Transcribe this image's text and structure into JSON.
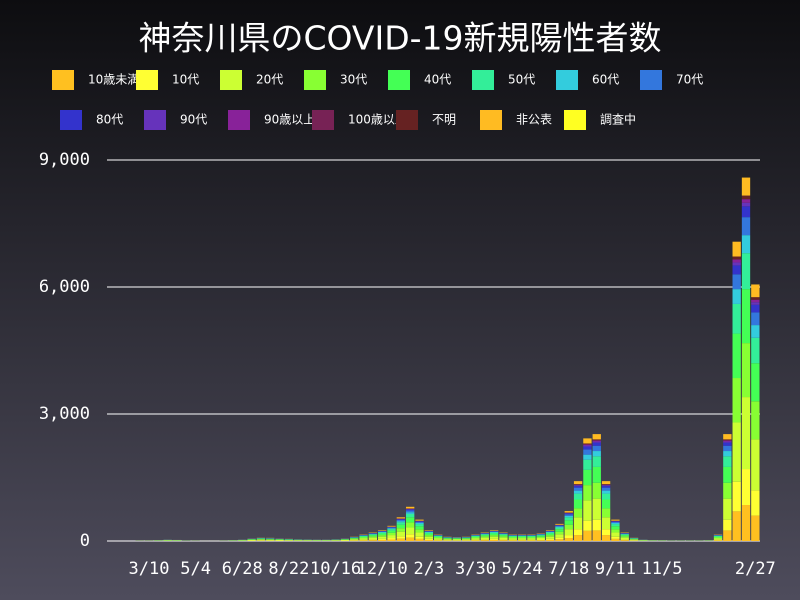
{
  "chart_data": {
    "type": "stacked_bar",
    "title": "神奈川県のCOVID-19新規陽性者数",
    "categories": [
      null,
      null,
      null,
      null,
      "3/10",
      null,
      null,
      null,
      null,
      "5/4",
      null,
      null,
      null,
      null,
      "6/28",
      null,
      null,
      null,
      null,
      "8/22",
      null,
      null,
      null,
      null,
      "10/16",
      null,
      null,
      null,
      null,
      "12/10",
      null,
      null,
      null,
      null,
      "2/3",
      null,
      null,
      null,
      null,
      "3/30",
      null,
      null,
      null,
      null,
      "5/24",
      null,
      null,
      null,
      null,
      "7/18",
      null,
      null,
      null,
      null,
      "9/11",
      null,
      null,
      null,
      null,
      "11/5",
      null,
      null,
      null,
      null,
      null,
      null,
      null,
      null,
      null,
      "2/27"
    ],
    "ylim": [
      0,
      9000
    ],
    "yticks": [
      {
        "value": 0,
        "label": "0"
      },
      {
        "value": 3000,
        "label": "3,000"
      },
      {
        "value": 6000,
        "label": "6,000"
      },
      {
        "value": 9000,
        "label": "9,000"
      }
    ],
    "grid": true,
    "series": [
      {
        "name": "10歳未満",
        "color": "#ffc020",
        "values": [
          0,
          0,
          0,
          1,
          1,
          2,
          3,
          3,
          1,
          1,
          0,
          0,
          1,
          2,
          3,
          6,
          8,
          7,
          6,
          5,
          4,
          4,
          3,
          3,
          4,
          6,
          10,
          15,
          20,
          25,
          35,
          55,
          80,
          50,
          25,
          15,
          10,
          9,
          10,
          15,
          20,
          25,
          20,
          15,
          15,
          15,
          18,
          25,
          40,
          70,
          140,
          240,
          250,
          140,
          50,
          20,
          8,
          3,
          2,
          2,
          1,
          1,
          1,
          1,
          2,
          15,
          250,
          700,
          850,
          600
        ]
      },
      {
        "name": "10代",
        "color": "#ffff33",
        "values": [
          0,
          0,
          0,
          1,
          1,
          2,
          3,
          3,
          1,
          1,
          0,
          0,
          1,
          2,
          3,
          6,
          8,
          7,
          6,
          5,
          4,
          4,
          3,
          3,
          4,
          6,
          10,
          15,
          20,
          25,
          35,
          55,
          80,
          50,
          25,
          15,
          10,
          9,
          10,
          15,
          20,
          25,
          20,
          15,
          15,
          15,
          18,
          25,
          40,
          70,
          140,
          240,
          250,
          140,
          50,
          20,
          8,
          3,
          2,
          2,
          1,
          1,
          1,
          1,
          2,
          15,
          250,
          700,
          850,
          600
        ]
      },
      {
        "name": "20代",
        "color": "#ccff33",
        "values": [
          0,
          0,
          0,
          1,
          2,
          4,
          6,
          5,
          2,
          1,
          1,
          1,
          1,
          4,
          6,
          12,
          16,
          14,
          12,
          10,
          8,
          7,
          6,
          6,
          8,
          12,
          20,
          30,
          40,
          50,
          70,
          110,
          160,
          100,
          50,
          30,
          20,
          18,
          20,
          30,
          40,
          50,
          40,
          30,
          30,
          30,
          36,
          50,
          80,
          140,
          280,
          480,
          500,
          280,
          100,
          40,
          16,
          6,
          4,
          3,
          2,
          2,
          2,
          2,
          3,
          30,
          500,
          1400,
          1700,
          1200
        ]
      },
      {
        "name": "30代",
        "color": "#88ff33",
        "values": [
          0,
          0,
          0,
          1,
          1,
          3,
          5,
          4,
          2,
          1,
          0,
          0,
          1,
          3,
          5,
          9,
          12,
          11,
          9,
          8,
          6,
          5,
          5,
          5,
          6,
          9,
          15,
          23,
          30,
          38,
          53,
          83,
          120,
          75,
          38,
          23,
          15,
          14,
          15,
          23,
          30,
          38,
          30,
          23,
          23,
          23,
          27,
          38,
          60,
          105,
          210,
          360,
          375,
          210,
          75,
          30,
          12,
          5,
          3,
          2,
          2,
          2,
          2,
          2,
          2,
          23,
          375,
          1050,
          1275,
          900
        ]
      },
      {
        "name": "40代",
        "color": "#44ff55",
        "values": [
          0,
          0,
          0,
          1,
          1,
          3,
          5,
          4,
          2,
          1,
          0,
          0,
          1,
          3,
          5,
          9,
          12,
          11,
          9,
          8,
          6,
          5,
          5,
          5,
          6,
          9,
          15,
          23,
          30,
          38,
          53,
          83,
          120,
          75,
          38,
          23,
          15,
          14,
          15,
          23,
          30,
          38,
          30,
          23,
          23,
          23,
          27,
          38,
          60,
          105,
          210,
          360,
          375,
          210,
          75,
          30,
          12,
          5,
          3,
          2,
          2,
          2,
          2,
          2,
          2,
          23,
          375,
          1050,
          1275,
          900
        ]
      },
      {
        "name": "50代",
        "color": "#33ee99",
        "values": [
          0,
          0,
          0,
          1,
          1,
          2,
          3,
          3,
          1,
          1,
          0,
          0,
          1,
          2,
          3,
          6,
          8,
          7,
          6,
          5,
          4,
          4,
          3,
          3,
          4,
          6,
          10,
          15,
          20,
          25,
          35,
          55,
          80,
          50,
          25,
          15,
          10,
          9,
          10,
          15,
          20,
          25,
          20,
          15,
          15,
          15,
          18,
          25,
          40,
          70,
          140,
          240,
          250,
          140,
          50,
          20,
          8,
          3,
          2,
          2,
          1,
          1,
          1,
          1,
          2,
          15,
          250,
          700,
          850,
          600
        ]
      },
      {
        "name": "60代",
        "color": "#33ccdd",
        "values": [
          0,
          0,
          0,
          0,
          0,
          1,
          2,
          1,
          1,
          0,
          0,
          0,
          0,
          1,
          2,
          3,
          4,
          4,
          3,
          3,
          2,
          2,
          2,
          2,
          2,
          3,
          5,
          8,
          10,
          13,
          18,
          28,
          40,
          25,
          13,
          8,
          5,
          5,
          5,
          8,
          10,
          13,
          10,
          8,
          8,
          8,
          9,
          13,
          20,
          35,
          70,
          120,
          125,
          70,
          25,
          10,
          4,
          2,
          1,
          1,
          1,
          1,
          1,
          1,
          1,
          8,
          125,
          350,
          425,
          300
        ]
      },
      {
        "name": "70代",
        "color": "#3377dd",
        "values": [
          0,
          0,
          0,
          0,
          0,
          1,
          2,
          1,
          1,
          0,
          0,
          0,
          0,
          1,
          2,
          3,
          4,
          4,
          3,
          3,
          2,
          2,
          2,
          2,
          2,
          3,
          5,
          8,
          10,
          13,
          18,
          28,
          40,
          25,
          13,
          8,
          5,
          5,
          5,
          8,
          10,
          13,
          10,
          8,
          8,
          8,
          9,
          13,
          20,
          35,
          70,
          120,
          125,
          70,
          25,
          10,
          4,
          2,
          1,
          1,
          1,
          1,
          1,
          1,
          1,
          8,
          125,
          350,
          425,
          300
        ]
      },
      {
        "name": "80代",
        "color": "#3333cc",
        "values": [
          0,
          0,
          0,
          0,
          0,
          1,
          1,
          1,
          0,
          0,
          0,
          0,
          0,
          1,
          1,
          2,
          2,
          2,
          2,
          2,
          1,
          1,
          1,
          1,
          1,
          2,
          3,
          5,
          6,
          8,
          11,
          17,
          24,
          15,
          8,
          5,
          3,
          3,
          3,
          5,
          6,
          8,
          6,
          5,
          5,
          5,
          5,
          8,
          12,
          21,
          42,
          72,
          75,
          42,
          15,
          6,
          2,
          1,
          1,
          0,
          0,
          0,
          0,
          0,
          0,
          5,
          75,
          210,
          255,
          180
        ]
      },
      {
        "name": "90代",
        "color": "#6633bb",
        "values": [
          0,
          0,
          0,
          0,
          0,
          0,
          0,
          0,
          0,
          0,
          0,
          0,
          0,
          0,
          0,
          1,
          1,
          1,
          1,
          1,
          0,
          0,
          0,
          0,
          0,
          1,
          1,
          2,
          2,
          3,
          4,
          6,
          8,
          5,
          3,
          2,
          1,
          1,
          1,
          2,
          2,
          3,
          2,
          2,
          2,
          2,
          2,
          3,
          4,
          7,
          14,
          24,
          25,
          14,
          5,
          2,
          1,
          0,
          0,
          0,
          0,
          0,
          0,
          0,
          0,
          2,
          25,
          70,
          85,
          60
        ]
      },
      {
        "name": "90歳以上",
        "color": "#882299",
        "values": [
          0,
          0,
          0,
          0,
          0,
          0,
          0,
          0,
          0,
          0,
          0,
          0,
          0,
          0,
          0,
          1,
          1,
          1,
          1,
          1,
          0,
          0,
          0,
          0,
          0,
          1,
          1,
          2,
          2,
          3,
          4,
          6,
          8,
          5,
          3,
          2,
          1,
          1,
          1,
          2,
          2,
          3,
          2,
          2,
          2,
          2,
          2,
          3,
          4,
          7,
          14,
          24,
          25,
          14,
          5,
          2,
          1,
          0,
          0,
          0,
          0,
          0,
          0,
          0,
          0,
          2,
          25,
          70,
          85,
          60
        ]
      },
      {
        "name": "100歳以上",
        "color": "#772255",
        "values": [
          0,
          0,
          0,
          0,
          0,
          0,
          0,
          0,
          0,
          0,
          0,
          0,
          0,
          0,
          0,
          0,
          0,
          0,
          0,
          0,
          0,
          0,
          0,
          0,
          0,
          0,
          0,
          0,
          0,
          0,
          0,
          0,
          0,
          0,
          0,
          0,
          0,
          0,
          0,
          0,
          0,
          0,
          0,
          0,
          0,
          0,
          0,
          0,
          0,
          0,
          0,
          0,
          0,
          0,
          0,
          0,
          0,
          0,
          0,
          0,
          0,
          0,
          0,
          0,
          0,
          0,
          0,
          0,
          0,
          0
        ]
      },
      {
        "name": "不明",
        "color": "#662222",
        "values": [
          0,
          0,
          0,
          0,
          0,
          0,
          0,
          0,
          0,
          0,
          0,
          0,
          0,
          0,
          0,
          1,
          1,
          1,
          1,
          1,
          0,
          0,
          0,
          0,
          0,
          1,
          1,
          2,
          2,
          3,
          4,
          6,
          8,
          5,
          3,
          2,
          1,
          1,
          1,
          2,
          2,
          3,
          2,
          2,
          2,
          2,
          2,
          3,
          4,
          7,
          14,
          24,
          25,
          14,
          5,
          2,
          1,
          0,
          0,
          0,
          0,
          0,
          0,
          0,
          0,
          2,
          25,
          70,
          85,
          60
        ]
      },
      {
        "name": "非公表",
        "color": "#ffbb22",
        "values": [
          0,
          0,
          0,
          0,
          0,
          1,
          2,
          1,
          1,
          0,
          0,
          0,
          0,
          1,
          2,
          3,
          4,
          4,
          3,
          3,
          2,
          2,
          2,
          2,
          2,
          3,
          5,
          8,
          10,
          13,
          18,
          28,
          40,
          25,
          13,
          8,
          5,
          5,
          5,
          8,
          10,
          13,
          10,
          8,
          8,
          8,
          9,
          13,
          20,
          35,
          70,
          120,
          125,
          70,
          25,
          10,
          4,
          2,
          1,
          1,
          1,
          1,
          1,
          1,
          1,
          8,
          125,
          350,
          425,
          300
        ]
      },
      {
        "name": "調査中",
        "color": "#ffff22",
        "values": [
          0,
          0,
          0,
          0,
          0,
          0,
          0,
          0,
          0,
          0,
          0,
          0,
          0,
          0,
          0,
          0,
          0,
          0,
          0,
          0,
          0,
          0,
          0,
          0,
          0,
          0,
          0,
          0,
          0,
          0,
          0,
          0,
          0,
          0,
          0,
          0,
          0,
          0,
          0,
          0,
          0,
          0,
          0,
          0,
          0,
          0,
          0,
          0,
          0,
          0,
          0,
          0,
          0,
          0,
          0,
          0,
          0,
          0,
          0,
          0,
          0,
          0,
          0,
          0,
          0,
          0,
          0,
          0,
          0,
          0
        ]
      }
    ]
  }
}
